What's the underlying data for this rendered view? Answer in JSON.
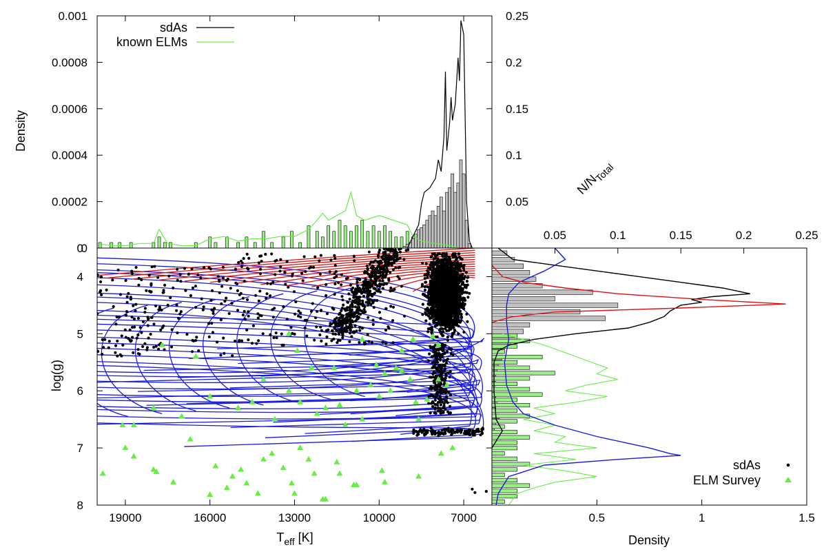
{
  "chart_data": [
    {
      "panel": "top histogram",
      "type": "bar+line",
      "xlabel": "",
      "ylabel": "Density",
      "ylabel_right": "N/N",
      "ylabel_right_sub": "Total",
      "x_axis": "Teff (shared with main panel, reversed)",
      "ylim_left": [
        0,
        0.001
      ],
      "ylim_right": [
        0,
        0.25
      ],
      "yticks_left": [
        "0",
        "0.0002",
        "0.0004",
        "0.0006",
        "0.0008",
        "0.001"
      ],
      "yticks_right": [
        "0.05",
        "0.1",
        "0.15",
        "0.2",
        "0.25"
      ],
      "legend": [
        {
          "label": "sdAs",
          "color": "#000000",
          "kind": "line"
        },
        {
          "label": "known ELMs",
          "color": "#66ee44",
          "kind": "line"
        }
      ],
      "legend_position": "top-left",
      "series": [
        {
          "name": "sdAs density",
          "color": "#000000",
          "teff": [
            9000,
            8800,
            8600,
            8500,
            8400,
            8300,
            8200,
            8100,
            8000,
            7900,
            7800,
            7700,
            7650,
            7600,
            7500,
            7450,
            7400,
            7300,
            7200,
            7150,
            7100,
            7000,
            6900,
            6800,
            6700
          ],
          "density": [
            0,
            5e-05,
            0.0001,
            0.00019,
            0.00024,
            0.00025,
            0.00026,
            0.00028,
            0.0003,
            0.00038,
            0.00033,
            0.00048,
            0.00076,
            0.00042,
            0.00054,
            0.00065,
            0.00055,
            0.00062,
            0.00082,
            0.00072,
            0.00098,
            0.00092,
            0.0002,
            3e-05,
            0
          ]
        },
        {
          "name": "known ELMs density",
          "color": "#66ee44",
          "teff": [
            20000,
            19500,
            19000,
            18500,
            18000,
            17800,
            17500,
            17000,
            16500,
            16000,
            15500,
            15000,
            14500,
            14000,
            13500,
            13000,
            12500,
            12200,
            12000,
            11800,
            11500,
            11200,
            11000,
            10800,
            10500,
            10000,
            9500,
            9000,
            8800,
            8500,
            8000,
            7500,
            7200
          ],
          "density": [
            2e-05,
            1e-05,
            1e-05,
            2e-05,
            2e-05,
            8e-05,
            2e-05,
            1e-05,
            1e-05,
            4e-05,
            5e-05,
            3e-05,
            4e-05,
            4e-05,
            5e-05,
            5e-05,
            8e-05,
            0.00012,
            0.00015,
            0.00012,
            0.00014,
            0.00016,
            0.00024,
            0.00014,
            0.00012,
            0.00014,
            0.00012,
            0.0001,
            5e-05,
            3e-05,
            2e-05,
            1e-05,
            0
          ]
        },
        {
          "name": "sdAs histogram (N/N_Total)",
          "color": "#c0c0c0",
          "bin_teff": [
            9100,
            9000,
            8900,
            8800,
            8700,
            8600,
            8500,
            8400,
            8300,
            8200,
            8100,
            8000,
            7900,
            7800,
            7700,
            7600,
            7500,
            7400,
            7300,
            7200,
            7100,
            7000,
            6900,
            6800
          ],
          "values": [
            0.002,
            0.004,
            0.006,
            0.01,
            0.015,
            0.02,
            0.022,
            0.025,
            0.03,
            0.035,
            0.04,
            0.035,
            0.045,
            0.055,
            0.04,
            0.06,
            0.065,
            0.08,
            0.06,
            0.07,
            0.095,
            0.08,
            0.03,
            0.005
          ]
        },
        {
          "name": "known ELMs histogram (N/N_Total)",
          "color": "#9bee88",
          "bin_teff": [
            19900,
            19500,
            19200,
            18800,
            18000,
            17800,
            17600,
            17400,
            16500,
            16000,
            15800,
            15400,
            15000,
            14700,
            14400,
            14100,
            13800,
            13400,
            13100,
            12800,
            12500,
            12200,
            12000,
            11800,
            11600,
            11400,
            11200,
            11000,
            10800,
            10600,
            10400,
            10200,
            10000,
            9800,
            9600,
            9400,
            9200,
            9000,
            8800,
            8600
          ],
          "values": [
            0.006,
            0.006,
            0.006,
            0.006,
            0.006,
            0.012,
            0.006,
            0.006,
            0.006,
            0.012,
            0.006,
            0.012,
            0.006,
            0.012,
            0.006,
            0.018,
            0.006,
            0.012,
            0.018,
            0.006,
            0.024,
            0.018,
            0.012,
            0.024,
            0.018,
            0.03,
            0.024,
            0.018,
            0.024,
            0.03,
            0.018,
            0.024,
            0.018,
            0.024,
            0.018,
            0.012,
            0.012,
            0.018,
            0.012,
            0.012
          ]
        }
      ]
    },
    {
      "panel": "main scatter",
      "type": "scatter+line",
      "xlabel": "T",
      "xlabel_sub": "eff",
      "xlabel_units": " [K]",
      "ylabel": "log(g)",
      "xlim": [
        20000,
        6000
      ],
      "ylim": [
        8,
        3.5
      ],
      "xticks": [
        "19000",
        "16000",
        "13000",
        "10000",
        "7000"
      ],
      "yticks": [
        "4",
        "5",
        "6",
        "7",
        "8"
      ],
      "y_top_tick": "0",
      "legend": [
        {
          "label": "sdAs",
          "marker": "dot",
          "color": "#000000"
        },
        {
          "label": "ELM Survey",
          "marker": "triangle",
          "color": "#66ee44"
        }
      ],
      "legend_position": "bottom-right",
      "series": [
        {
          "name": "sdAs main clump",
          "color": "#000000",
          "teff_range": [
            6800,
            8600
          ],
          "logg_range": [
            3.6,
            5.2
          ],
          "approx_count": 2200
        },
        {
          "name": "sdAs diagonal branch",
          "color": "#000000",
          "teff_from": 11500,
          "logg_from": 5.0,
          "teff_to": 9400,
          "logg_to": 3.5,
          "approx_count": 500
        },
        {
          "name": "sdAs low-gravity tail",
          "color": "#000000",
          "teff_range": [
            7400,
            8300
          ],
          "logg_range": [
            5.2,
            6.4
          ],
          "approx_count": 250
        },
        {
          "name": "sdAs logg 6.7 row",
          "color": "#000000",
          "teff_range": [
            6300,
            8800
          ],
          "logg": 6.72,
          "approx_count": 120
        },
        {
          "name": "sdAs scattered hot",
          "color": "#000000",
          "teff_range": [
            9000,
            20000
          ],
          "logg_range": [
            3.5,
            5.6
          ],
          "approx_count": 400
        },
        {
          "name": "ELM Survey",
          "color": "#66ee44",
          "marker": "triangle",
          "points": [
            [
              19800,
              7.45
            ],
            [
              19000,
              7.0
            ],
            [
              18700,
              7.15
            ],
            [
              18000,
              7.38
            ],
            [
              17900,
              7.42
            ],
            [
              17300,
              7.6
            ],
            [
              16000,
              7.82
            ],
            [
              15800,
              7.32
            ],
            [
              15400,
              7.7
            ],
            [
              15200,
              7.5
            ],
            [
              14900,
              7.38
            ],
            [
              14700,
              7.62
            ],
            [
              14300,
              7.8
            ],
            [
              14100,
              7.2
            ],
            [
              13800,
              7.1
            ],
            [
              13400,
              7.35
            ],
            [
              13100,
              7.62
            ],
            [
              13000,
              7.8
            ],
            [
              12800,
              7.0
            ],
            [
              12500,
              7.2
            ],
            [
              12300,
              7.45
            ],
            [
              12000,
              7.9
            ],
            [
              11900,
              7.9
            ],
            [
              11500,
              7.25
            ],
            [
              11400,
              7.45
            ],
            [
              10900,
              7.65
            ],
            [
              10800,
              7.65
            ],
            [
              9900,
              7.4
            ],
            [
              9800,
              7.6
            ],
            [
              8600,
              7.5
            ],
            [
              7800,
              7.1
            ],
            [
              7400,
              7.0
            ],
            [
              19100,
              6.6
            ],
            [
              18700,
              6.6
            ],
            [
              18000,
              6.3
            ],
            [
              17000,
              6.45
            ],
            [
              16700,
              6.85
            ],
            [
              16000,
              6.1
            ],
            [
              15000,
              6.3
            ],
            [
              14500,
              6.2
            ],
            [
              14100,
              5.8
            ],
            [
              13700,
              6.5
            ],
            [
              13200,
              6.0
            ],
            [
              12800,
              6.2
            ],
            [
              12200,
              6.4
            ],
            [
              11900,
              6.3
            ],
            [
              11400,
              6.25
            ],
            [
              11200,
              6.6
            ],
            [
              10800,
              6.0
            ],
            [
              10600,
              6.5
            ],
            [
              10300,
              5.9
            ],
            [
              10000,
              6.1
            ],
            [
              9600,
              6.0
            ],
            [
              9400,
              5.6
            ],
            [
              9200,
              5.65
            ],
            [
              8900,
              5.8
            ],
            [
              8700,
              6.2
            ],
            [
              8600,
              6.5
            ],
            [
              8300,
              6.15
            ],
            [
              7900,
              5.8
            ],
            [
              7600,
              5.9
            ],
            [
              17700,
              5.2
            ],
            [
              16500,
              5.4
            ],
            [
              13200,
              5.0
            ],
            [
              12900,
              5.3
            ],
            [
              12400,
              5.6
            ],
            [
              11600,
              5.6
            ],
            [
              10600,
              5.1
            ],
            [
              10100,
              5.55
            ],
            [
              9800,
              5.7
            ],
            [
              9200,
              5.3
            ],
            [
              8800,
              5.1
            ],
            [
              8100,
              5.05
            ],
            [
              7900,
              5.2
            ]
          ]
        }
      ],
      "tracks": {
        "blue_color": "#1a1adf",
        "red_color": "#dd1111",
        "count_blue": 30,
        "count_red": 14
      }
    },
    {
      "panel": "right histogram",
      "type": "bar+line",
      "xlabel": "Density",
      "ylabel": "log(g) (shared with main panel)",
      "xlim_bottom": [
        0,
        1.5
      ],
      "xticks_bottom": [
        "0.5",
        "1",
        "1.5"
      ],
      "xlim_top": [
        0,
        0.25
      ],
      "xticks_top": [
        "0.05",
        "0.1",
        "0.15",
        "0.2",
        "0.25"
      ],
      "series": [
        {
          "name": "sdAs density",
          "color": "#000000",
          "logg": [
            3.5,
            3.7,
            3.8,
            3.9,
            4.0,
            4.1,
            4.2,
            4.3,
            4.35,
            4.4,
            4.45,
            4.5,
            4.6,
            4.7,
            4.8,
            4.9,
            5.0,
            5.1,
            5.2,
            5.3,
            5.5,
            6.0,
            6.5,
            6.7,
            7.0
          ],
          "density": [
            0.03,
            0.1,
            0.3,
            0.5,
            0.7,
            0.9,
            1.1,
            1.23,
            1.05,
            0.95,
            1.0,
            0.9,
            0.85,
            0.82,
            0.75,
            0.65,
            0.4,
            0.2,
            0.08,
            0.03,
            0.01,
            0.01,
            0.02,
            0.05,
            0.0
          ]
        },
        {
          "name": "sdAs subset density",
          "color": "#dd1111",
          "logg": [
            3.8,
            4.0,
            4.1,
            4.2,
            4.3,
            4.4,
            4.48,
            4.55,
            4.62,
            4.7,
            4.8
          ],
          "density": [
            0.0,
            0.05,
            0.15,
            0.35,
            0.6,
            1.0,
            1.4,
            0.9,
            0.3,
            0.1,
            0.0
          ]
        },
        {
          "name": "model tracks density",
          "color": "#1a1adf",
          "logg": [
            3.5,
            3.7,
            3.9,
            4.1,
            4.3,
            4.5,
            4.8,
            5.1,
            5.5,
            5.9,
            6.2,
            6.4,
            6.6,
            6.8,
            7.0,
            7.1,
            7.13,
            7.2,
            7.3,
            7.5,
            7.8,
            8.0
          ],
          "density": [
            0.3,
            0.35,
            0.25,
            0.13,
            0.08,
            0.07,
            0.07,
            0.08,
            0.06,
            0.07,
            0.1,
            0.15,
            0.3,
            0.5,
            0.75,
            0.85,
            0.9,
            0.6,
            0.25,
            0.08,
            0.03,
            0.02
          ]
        },
        {
          "name": "ELM Survey density",
          "color": "#66ee44",
          "logg": [
            5.0,
            5.2,
            5.4,
            5.6,
            5.7,
            5.8,
            5.9,
            6.0,
            6.1,
            6.2,
            6.3,
            6.4,
            6.5,
            6.6,
            6.7,
            6.8,
            6.9,
            7.0,
            7.1,
            7.2,
            7.3,
            7.4,
            7.5,
            7.6,
            7.7,
            7.8,
            7.9,
            8.0
          ],
          "density": [
            0.05,
            0.25,
            0.4,
            0.55,
            0.5,
            0.6,
            0.45,
            0.35,
            0.55,
            0.4,
            0.2,
            0.3,
            0.15,
            0.3,
            0.2,
            0.35,
            0.3,
            0.5,
            0.2,
            0.4,
            0.15,
            0.35,
            0.5,
            0.3,
            0.2,
            0.12,
            0.1,
            0.08
          ]
        },
        {
          "name": "sdAs histogram",
          "color": "#c0c0c0",
          "values": [
            0.012,
            0.018,
            0.025,
            0.03,
            0.035,
            0.04,
            0.08,
            0.05,
            0.1,
            0.07,
            0.09,
            0.03,
            0.025,
            0.02,
            0.015,
            0.01,
            0.008,
            0.005,
            0.004,
            0.003,
            0.003,
            0.002,
            0.003,
            0.004,
            0.003,
            0.006,
            0.003,
            0.002
          ]
        },
        {
          "name": "ELM histogram",
          "color": "#9bee88",
          "values": [
            0.02,
            0.03,
            0.02,
            0.01,
            0.04,
            0.02,
            0.03,
            0.05,
            0.03,
            0.02,
            0.03,
            0.04,
            0.02,
            0.03,
            0.02,
            0.03,
            0.02,
            0.01,
            0.02,
            0.03,
            0.02,
            0.02,
            0.01,
            0.02,
            0.03,
            0.02,
            0.01,
            0.02,
            0.03,
            0.02,
            0.02,
            0.01
          ]
        }
      ]
    }
  ]
}
